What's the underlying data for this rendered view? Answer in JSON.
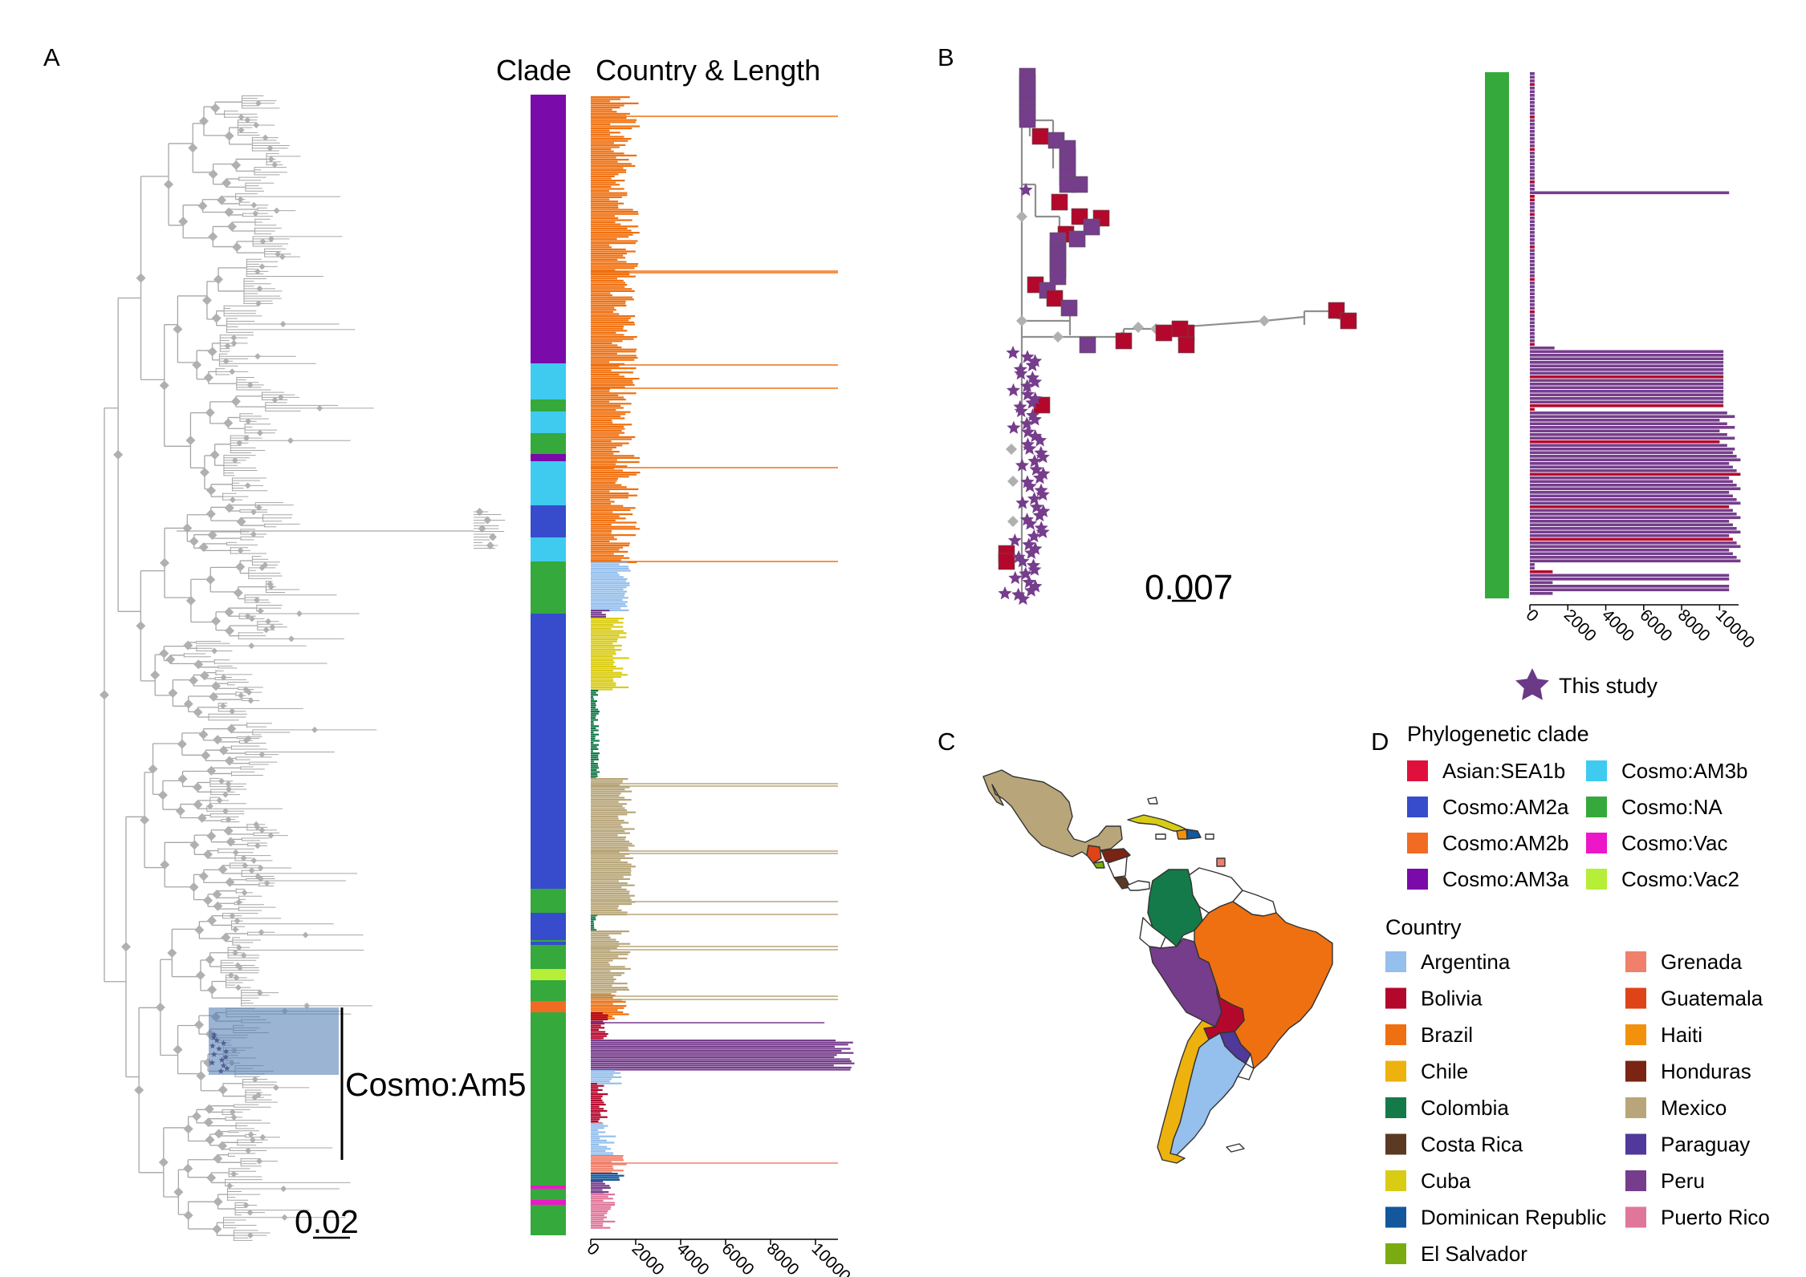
{
  "panels": {
    "a": {
      "label": "A",
      "clade_title": "Clade",
      "country_title": "Country & Length",
      "highlight_label": "Cosmo:Am5",
      "scale_label": "0.02",
      "axis_ticks": [
        "0",
        "2000",
        "4000",
        "6000",
        "8000",
        "10000"
      ]
    },
    "b": {
      "label": "B",
      "scale_label": "0.007",
      "axis_ticks": [
        "0",
        "2000",
        "4000",
        "6000",
        "8000",
        "10000"
      ],
      "star_legend": "This study"
    },
    "c": {
      "label": "C"
    },
    "d": {
      "label": "D",
      "clade_legend_title": "Phylogenetic clade",
      "clades": [
        {
          "name": "Asian:SEA1b",
          "color": "#e0103c"
        },
        {
          "name": "Cosmo:AM3b",
          "color": "#3ecbef"
        },
        {
          "name": "Cosmo:AM2a",
          "color": "#364ccc"
        },
        {
          "name": "Cosmo:NA",
          "color": "#35a93c"
        },
        {
          "name": "Cosmo:AM2b",
          "color": "#f26b22"
        },
        {
          "name": "Cosmo:Vac",
          "color": "#ec17c9"
        },
        {
          "name": "Cosmo:AM3a",
          "color": "#7a0aaa"
        },
        {
          "name": "Cosmo:Vac2",
          "color": "#b6ee38"
        }
      ],
      "country_legend_title": "Country",
      "countries": [
        {
          "name": "Argentina",
          "color": "#95bfec"
        },
        {
          "name": "Grenada",
          "color": "#f0806b"
        },
        {
          "name": "Bolivia",
          "color": "#b3082c"
        },
        {
          "name": "Guatemala",
          "color": "#de4418"
        },
        {
          "name": "Brazil",
          "color": "#ef7010"
        },
        {
          "name": "Haiti",
          "color": "#f2920c"
        },
        {
          "name": "Chile",
          "color": "#eeb20e"
        },
        {
          "name": "Honduras",
          "color": "#7a2413"
        },
        {
          "name": "Colombia",
          "color": "#157a4a"
        },
        {
          "name": "Mexico",
          "color": "#b8a67a"
        },
        {
          "name": "Costa Rica",
          "color": "#5a3a22"
        },
        {
          "name": "Paraguay",
          "color": "#50399a"
        },
        {
          "name": "Cuba",
          "color": "#d9cc14"
        },
        {
          "name": "Peru",
          "color": "#763d8c"
        },
        {
          "name": "Dominican Republic",
          "color": "#13579c"
        },
        {
          "name": "Puerto Rico",
          "color": "#e0769a"
        },
        {
          "name": "El Salvador",
          "color": "#7aac12"
        }
      ]
    }
  },
  "colors": {
    "tree": "#a6a6a6",
    "node": "#b0b0b0",
    "highlight": "#5882b8",
    "map_border": "#333333",
    "white_country": "#ffffff"
  }
}
